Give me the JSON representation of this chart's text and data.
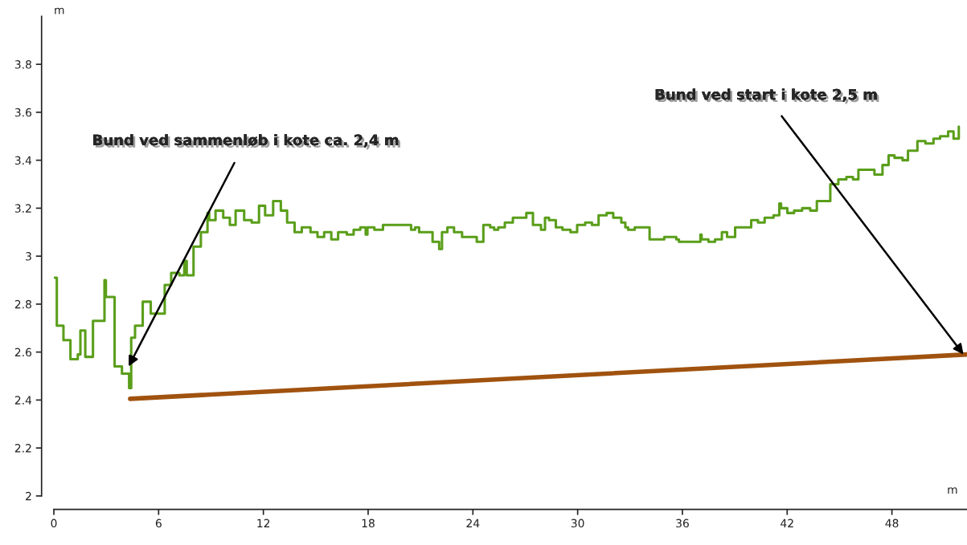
{
  "chart_data": {
    "type": "step",
    "xlabel": "m",
    "ylabel": "m",
    "xlim": [
      0,
      52.3
    ],
    "ylim": [
      2,
      4.0
    ],
    "xticks": [
      0,
      6,
      12,
      18,
      24,
      30,
      36,
      42,
      48
    ],
    "yticks": [
      2,
      2.2,
      2.4,
      2.6,
      2.8,
      3,
      3.2,
      3.4,
      3.6,
      3.8
    ],
    "grid": false,
    "legend": false,
    "series": [
      {
        "color": "#5a9e1a",
        "x": [
          0.05,
          0.17,
          0.55,
          0.95,
          1.37,
          1.52,
          1.8,
          2.24,
          2.9,
          2.98,
          3.48,
          3.9,
          4.31,
          4.43,
          4.65,
          5.09,
          5.55,
          6.35,
          6.72,
          7.19,
          7.47,
          7.61,
          8.0,
          8.42,
          8.8,
          8.9,
          9.26,
          9.7,
          10.08,
          10.41,
          10.9,
          11.33,
          11.75,
          12.1,
          12.56,
          13.0,
          13.36,
          13.79,
          14.2,
          14.7,
          15.1,
          15.48,
          15.89,
          16.28,
          16.78,
          17.17,
          17.55,
          17.86,
          17.96,
          18.36,
          18.85,
          20.46,
          20.69,
          20.92,
          21.69,
          22.07,
          22.23,
          22.54,
          22.92,
          23.38,
          24.22,
          24.6,
          24.99,
          25.22,
          25.45,
          25.83,
          26.29,
          27.06,
          27.44,
          27.9,
          28.13,
          28.36,
          28.75,
          29.13,
          29.59,
          29.97,
          30.43,
          30.82,
          31.2,
          31.66,
          32.04,
          32.5,
          32.73,
          32.89,
          33.27,
          34.12,
          34.96,
          35.65,
          35.8,
          37.03,
          37.1,
          37.49,
          37.87,
          38.26,
          38.56,
          39.02,
          39.94,
          40.33,
          40.71,
          41.22,
          41.55,
          41.65,
          42.01,
          42.4,
          42.86,
          43.32,
          43.7,
          44.47,
          44.93,
          45.39,
          45.77,
          46.08,
          47.0,
          47.46,
          47.81,
          48.15,
          48.61,
          48.92,
          49.46,
          49.92,
          50.38,
          50.76,
          51.22,
          51.53,
          51.83
        ],
        "values": [
          2.91,
          2.71,
          2.65,
          2.57,
          2.59,
          2.69,
          2.58,
          2.73,
          2.9,
          2.83,
          2.54,
          2.51,
          2.45,
          2.66,
          2.71,
          2.81,
          2.76,
          2.88,
          2.93,
          2.92,
          2.98,
          2.92,
          3.04,
          3.1,
          3.18,
          3.15,
          3.19,
          3.16,
          3.13,
          3.19,
          3.15,
          3.14,
          3.21,
          3.17,
          3.23,
          3.19,
          3.14,
          3.1,
          3.12,
          3.1,
          3.08,
          3.1,
          3.07,
          3.1,
          3.09,
          3.11,
          3.12,
          3.09,
          3.12,
          3.11,
          3.13,
          3.11,
          3.12,
          3.1,
          3.06,
          3.03,
          3.1,
          3.12,
          3.1,
          3.08,
          3.06,
          3.13,
          3.12,
          3.11,
          3.12,
          3.14,
          3.16,
          3.18,
          3.13,
          3.11,
          3.16,
          3.15,
          3.12,
          3.11,
          3.1,
          3.13,
          3.14,
          3.13,
          3.17,
          3.18,
          3.16,
          3.14,
          3.12,
          3.11,
          3.12,
          3.07,
          3.08,
          3.07,
          3.06,
          3.09,
          3.07,
          3.06,
          3.07,
          3.1,
          3.08,
          3.12,
          3.15,
          3.14,
          3.16,
          3.17,
          3.22,
          3.2,
          3.18,
          3.19,
          3.2,
          3.19,
          3.23,
          3.3,
          3.32,
          3.33,
          3.32,
          3.36,
          3.34,
          3.38,
          3.42,
          3.41,
          3.4,
          3.44,
          3.48,
          3.47,
          3.49,
          3.5,
          3.52,
          3.49,
          3.54
        ]
      },
      {
        "type": "line",
        "color": "#a0520f",
        "x": [
          4.37,
          52.3
        ],
        "values": [
          2.405,
          2.59
        ]
      }
    ],
    "annotations": [
      {
        "text": "Bund ved sammenløb i kote ca. 2,4 m",
        "x": 4.28,
        "y": 2.54
      },
      {
        "text": "Bund ved start i kote 2,5 m",
        "x": 52.1,
        "y": 2.59
      }
    ]
  }
}
